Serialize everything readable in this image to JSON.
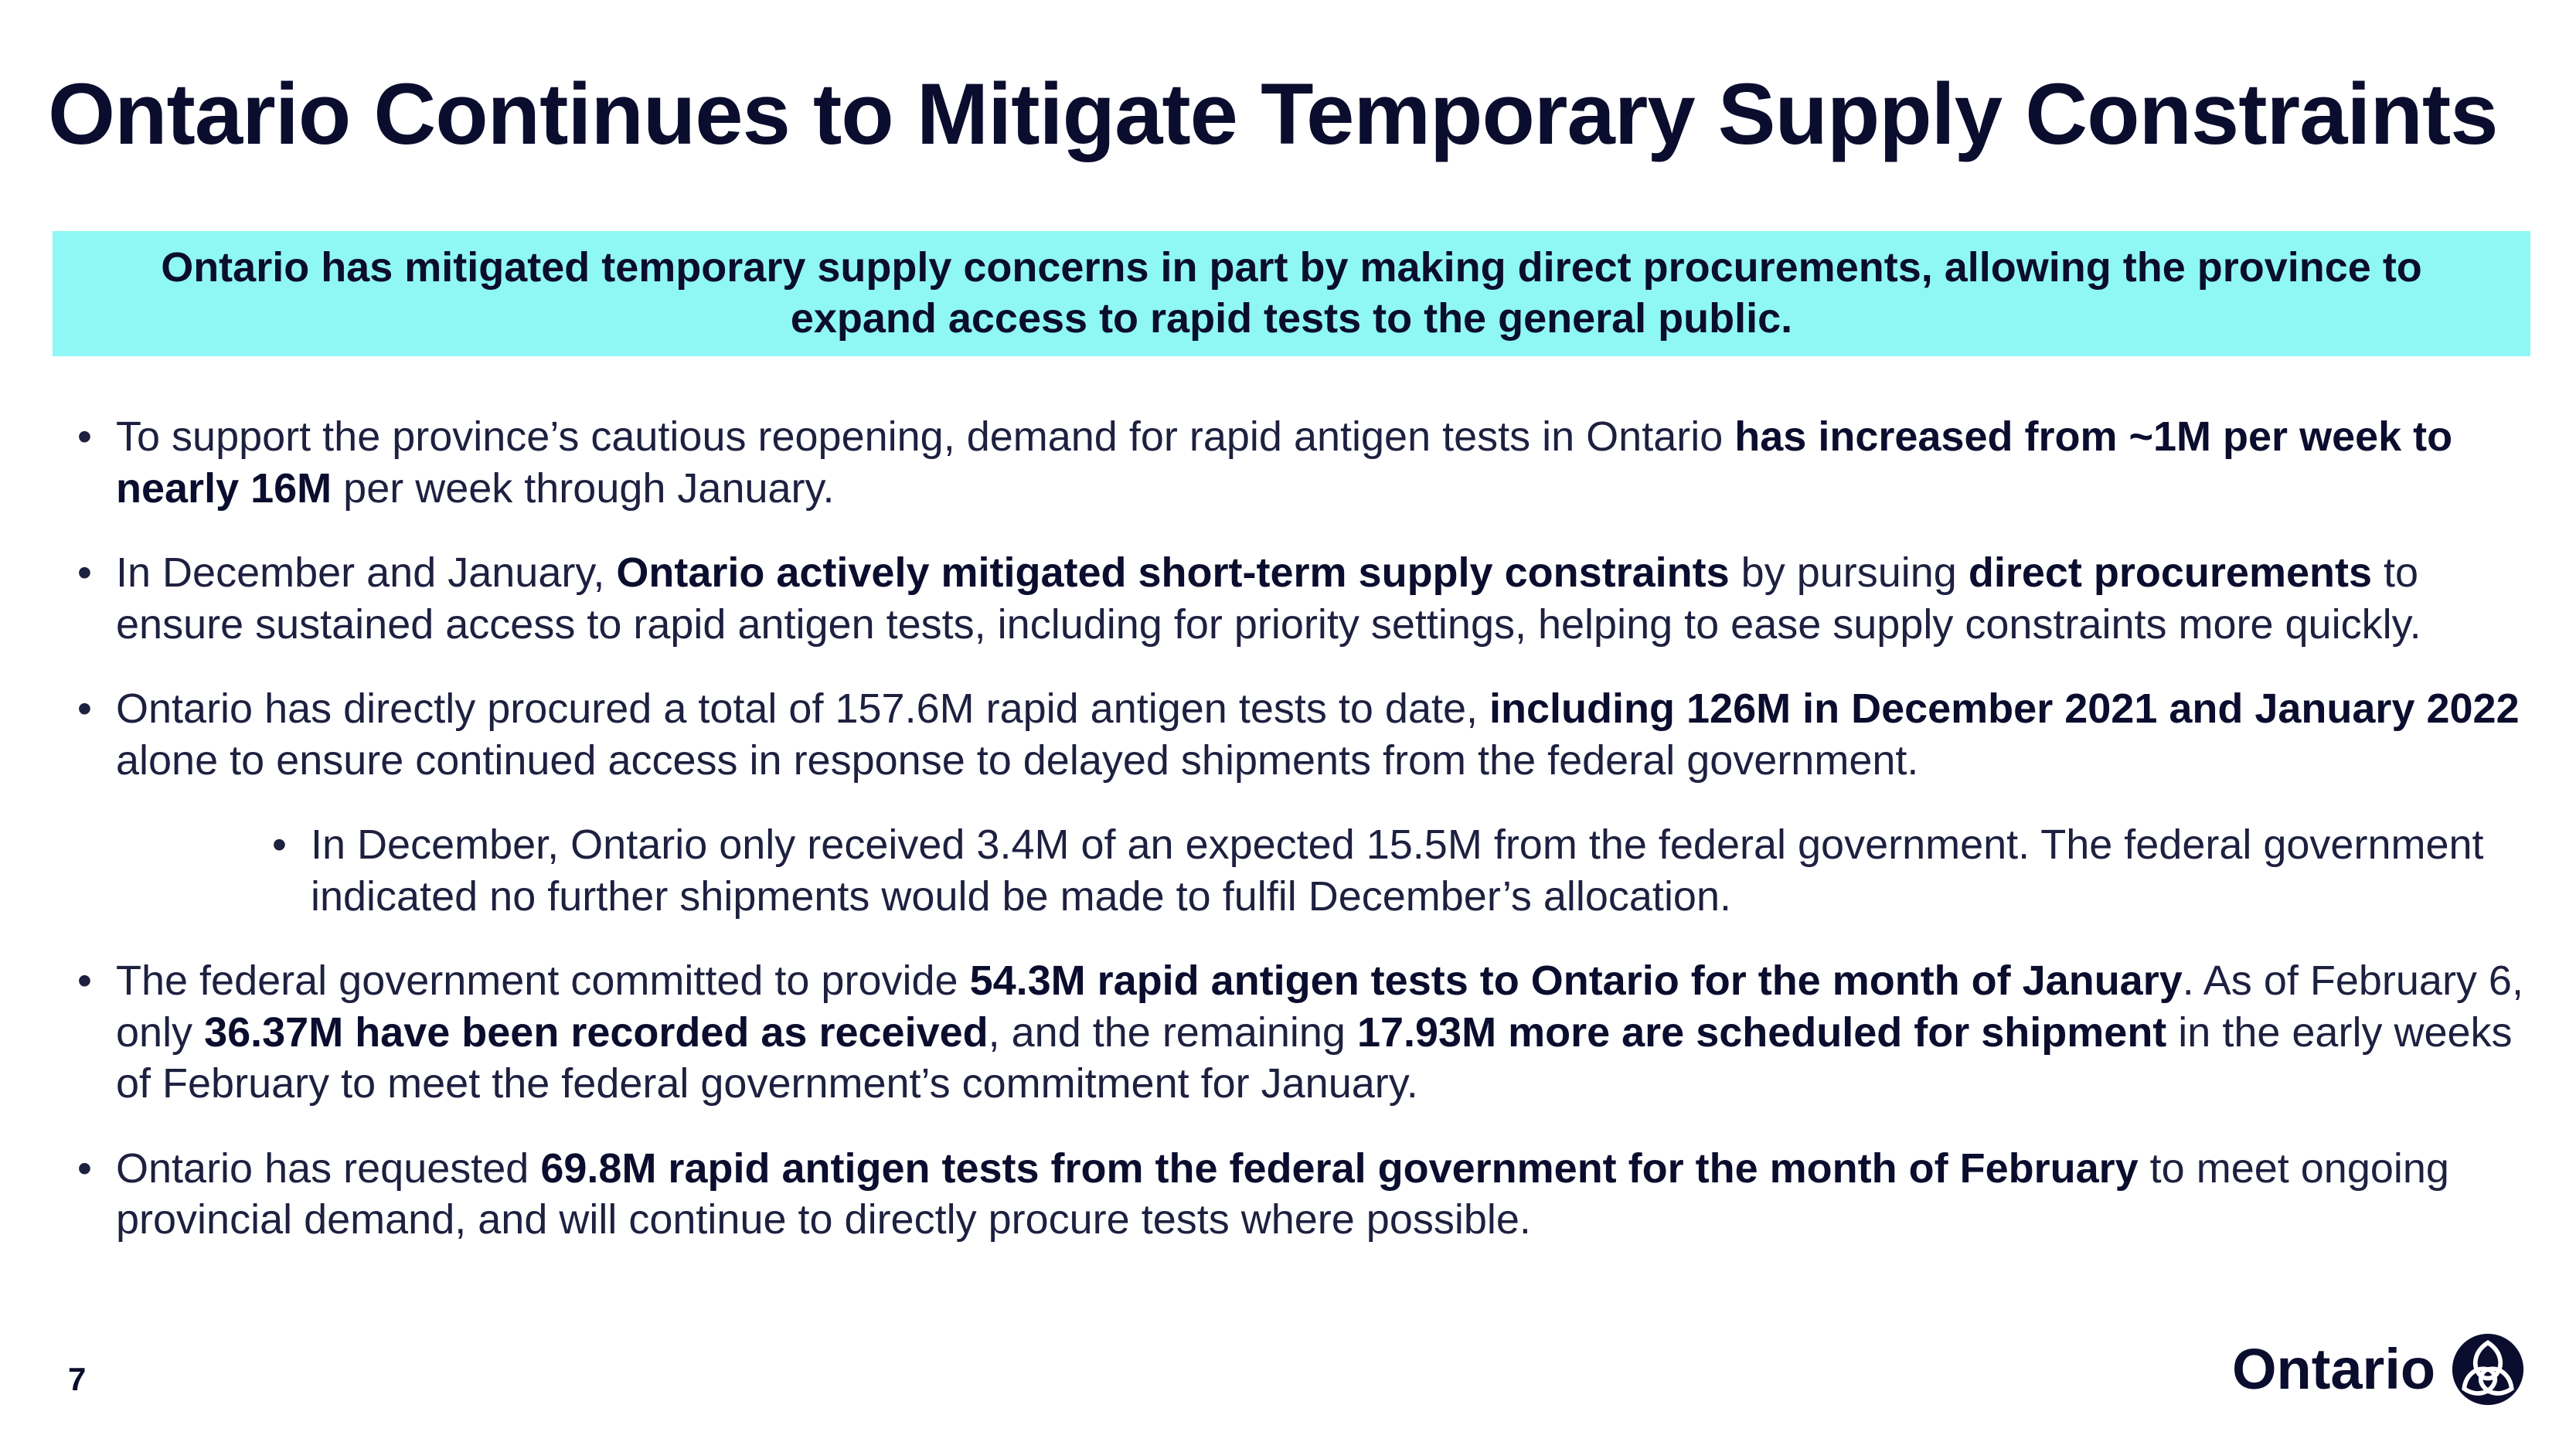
{
  "slide": {
    "title": "Ontario Continues to Mitigate Temporary Supply Constraints",
    "callout": "Ontario has mitigated temporary supply concerns in part by making direct procurements, allowing the province to expand access to rapid tests to the general public.",
    "page_number": "7"
  },
  "bullets": [
    {
      "level": 1,
      "runs": [
        {
          "text": "To support the province’s cautious reopening, demand for rapid antigen tests in Ontario ",
          "bold": false
        },
        {
          "text": "has increased from ~1M per week to nearly 16M",
          "bold": true
        },
        {
          "text": " per week through January.",
          "bold": false
        }
      ]
    },
    {
      "level": 1,
      "runs": [
        {
          "text": "In December and January, ",
          "bold": false
        },
        {
          "text": "Ontario actively mitigated short-term supply constraints",
          "bold": true
        },
        {
          "text": " by pursuing ",
          "bold": false
        },
        {
          "text": "direct procurements",
          "bold": true
        },
        {
          "text": " to ensure sustained access to rapid antigen tests, including for priority settings, helping to ease supply constraints more quickly.",
          "bold": false
        }
      ]
    },
    {
      "level": 1,
      "runs": [
        {
          "text": "Ontario has directly procured a total of 157.6M rapid antigen tests to date, ",
          "bold": false
        },
        {
          "text": "including 126M in December 2021 and January 2022",
          "bold": true
        },
        {
          "text": " alone to ensure continued access in response to delayed shipments from the federal government.",
          "bold": false
        }
      ]
    },
    {
      "level": 2,
      "runs": [
        {
          "text": "In December, Ontario only received 3.4M of an expected 15.5M from the federal government. The federal government indicated no further shipments would be made to fulfil December’s allocation.",
          "bold": false
        }
      ]
    },
    {
      "level": 1,
      "runs": [
        {
          "text": "The federal government committed to provide ",
          "bold": false
        },
        {
          "text": "54.3M rapid antigen tests to Ontario for the month of January",
          "bold": true
        },
        {
          "text": ". As of February 6, only ",
          "bold": false
        },
        {
          "text": "36.37M have been recorded as received",
          "bold": true
        },
        {
          "text": ", and the remaining ",
          "bold": false
        },
        {
          "text": "17.93M more are scheduled for shipment",
          "bold": true
        },
        {
          "text": " in the early weeks of February to meet the federal government’s commitment for January.",
          "bold": false
        }
      ]
    },
    {
      "level": 1,
      "runs": [
        {
          "text": "Ontario has requested ",
          "bold": false
        },
        {
          "text": "69.8M rapid antigen tests from the federal government for the month of February",
          "bold": true
        },
        {
          "text": " to meet ongoing provincial demand, and will continue to directly procure tests where possible.",
          "bold": false
        }
      ]
    }
  ],
  "logo": {
    "wordmark": "Ontario",
    "icon": "ontario-trillium-icon",
    "color": "#0b0d2e"
  },
  "colors": {
    "title": "#0b0d2e",
    "callout_background": "#8ff7f5",
    "body_text": "#1e2040"
  }
}
